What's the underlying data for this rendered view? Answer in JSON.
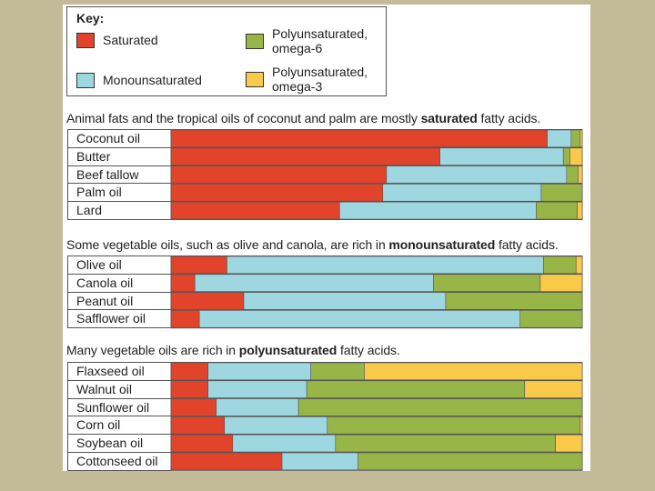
{
  "colors": {
    "saturated": "#e1432b",
    "monounsaturated": "#9fd7e1",
    "omega6": "#98b547",
    "omega3": "#f9c94a"
  },
  "chart_data": {
    "type": "bar",
    "orientation": "horizontal",
    "stacked": true,
    "normalized": true,
    "legend": {
      "title": "Key:",
      "items": [
        {
          "key": "saturated",
          "label": "Saturated"
        },
        {
          "key": "monounsaturated",
          "label": "Monounsaturated"
        },
        {
          "key": "omega6",
          "label": "Polyunsaturated,\nomega-6"
        },
        {
          "key": "omega3",
          "label": "Polyunsaturated,\nomega-3"
        }
      ]
    },
    "series_order": [
      "saturated",
      "monounsaturated",
      "omega6",
      "omega3"
    ],
    "groups": [
      {
        "title_pre": "Animal fats and the tropical oils of coconut and palm are mostly ",
        "title_bold": "saturated",
        "title_post": " fatty acids.",
        "rows": [
          {
            "name": "Coconut oil",
            "values": [
              91.5,
              5.8,
              2.2,
              0.5
            ]
          },
          {
            "name": "Butter",
            "values": [
              65.4,
              30.0,
              1.6,
              3.0
            ]
          },
          {
            "name": "Beef tallow",
            "values": [
              52.4,
              43.8,
              2.8,
              1.0
            ]
          },
          {
            "name": "Palm oil",
            "values": [
              51.5,
              38.5,
              10.0,
              0.0
            ]
          },
          {
            "name": "Lard",
            "values": [
              41.0,
              47.8,
              10.0,
              1.2
            ]
          }
        ]
      },
      {
        "title_pre": "Some vegetable oils, such as olive and canola, are rich in ",
        "title_bold": "monounsaturated",
        "title_post": " fatty acids.",
        "rows": [
          {
            "name": "Olive oil",
            "values": [
              13.6,
              77.0,
              7.9,
              1.5
            ]
          },
          {
            "name": "Canola oil",
            "values": [
              5.8,
              58.0,
              26.0,
              10.2
            ]
          },
          {
            "name": "Peanut oil",
            "values": [
              17.7,
              49.1,
              33.2,
              0.0
            ]
          },
          {
            "name": "Safflower oil",
            "values": [
              6.9,
              78.0,
              15.1,
              0.0
            ]
          }
        ]
      },
      {
        "title_pre": "Many vegetable oils are rich in ",
        "title_bold": "polyunsaturated",
        "title_post": " fatty acids.",
        "rows": [
          {
            "name": "Flaxseed oil",
            "values": [
              9.0,
              25.0,
              13.0,
              53.0
            ]
          },
          {
            "name": "Walnut oil",
            "values": [
              9.0,
              24.0,
              53.0,
              14.0
            ]
          },
          {
            "name": "Sunflower oil",
            "values": [
              11.0,
              20.0,
              69.0,
              0.0
            ]
          },
          {
            "name": "Corn oil",
            "values": [
              13.0,
              25.0,
              61.5,
              0.5
            ]
          },
          {
            "name": "Soybean oil",
            "values": [
              15.0,
              25.0,
              53.5,
              6.5
            ]
          },
          {
            "name": "Cottonseed oil",
            "values": [
              27.0,
              18.5,
              54.5,
              0.0
            ]
          }
        ]
      }
    ]
  }
}
